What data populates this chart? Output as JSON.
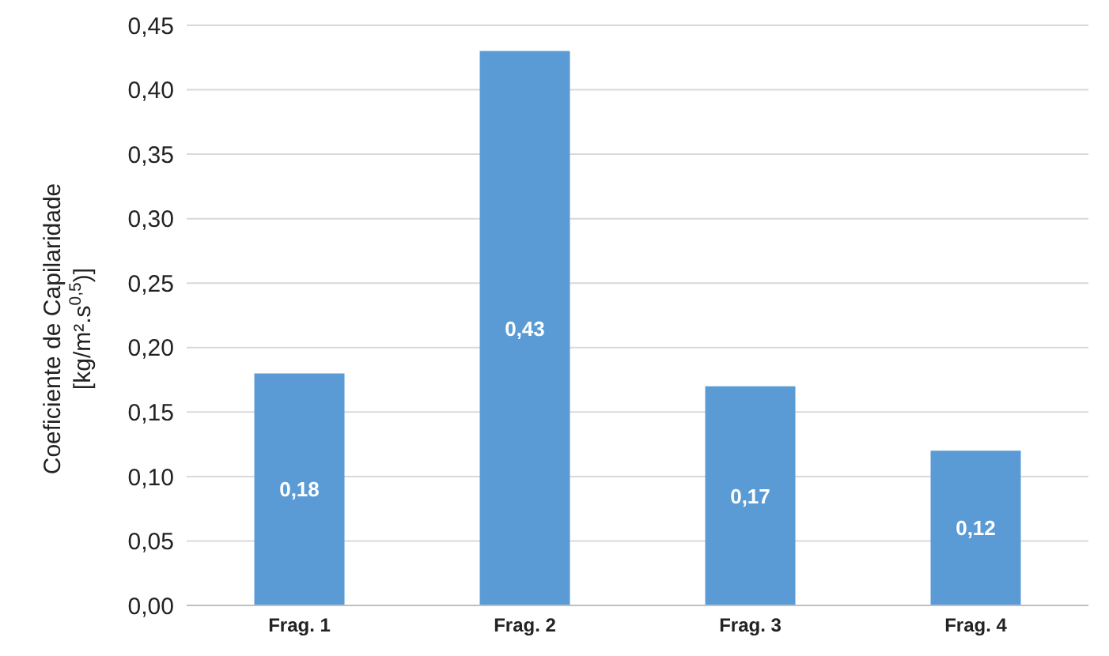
{
  "chart_data": {
    "type": "bar",
    "ylabel": "Coeficiente de Capilaridade\n[kg/m².s$^{0,5}$)]",
    "categories": [
      "Frag. 1",
      "Frag. 2",
      "Frag. 3",
      "Frag. 4"
    ],
    "values": [
      0.18,
      0.43,
      0.17,
      0.12
    ],
    "color": "#5b9bd5",
    "value_labels": [
      "0,18",
      "0,43",
      "0,17",
      "0,12"
    ],
    "ylim": [
      0,
      0.45
    ],
    "yticks": [
      {
        "value": 0,
        "label": "0,00"
      },
      {
        "value": 0.05,
        "label": "0,05"
      },
      {
        "value": 0.1,
        "label": "0,10"
      },
      {
        "value": 0.15,
        "label": "0,15"
      },
      {
        "value": 0.2,
        "label": "0,20"
      },
      {
        "value": 0.25,
        "label": "0,25"
      },
      {
        "value": 0.3,
        "label": "0,30"
      },
      {
        "value": 0.35,
        "label": "0,35"
      },
      {
        "value": 0.4,
        "label": "0,40"
      },
      {
        "value": 0.45,
        "label": "0,45"
      }
    ],
    "grid": "y"
  }
}
